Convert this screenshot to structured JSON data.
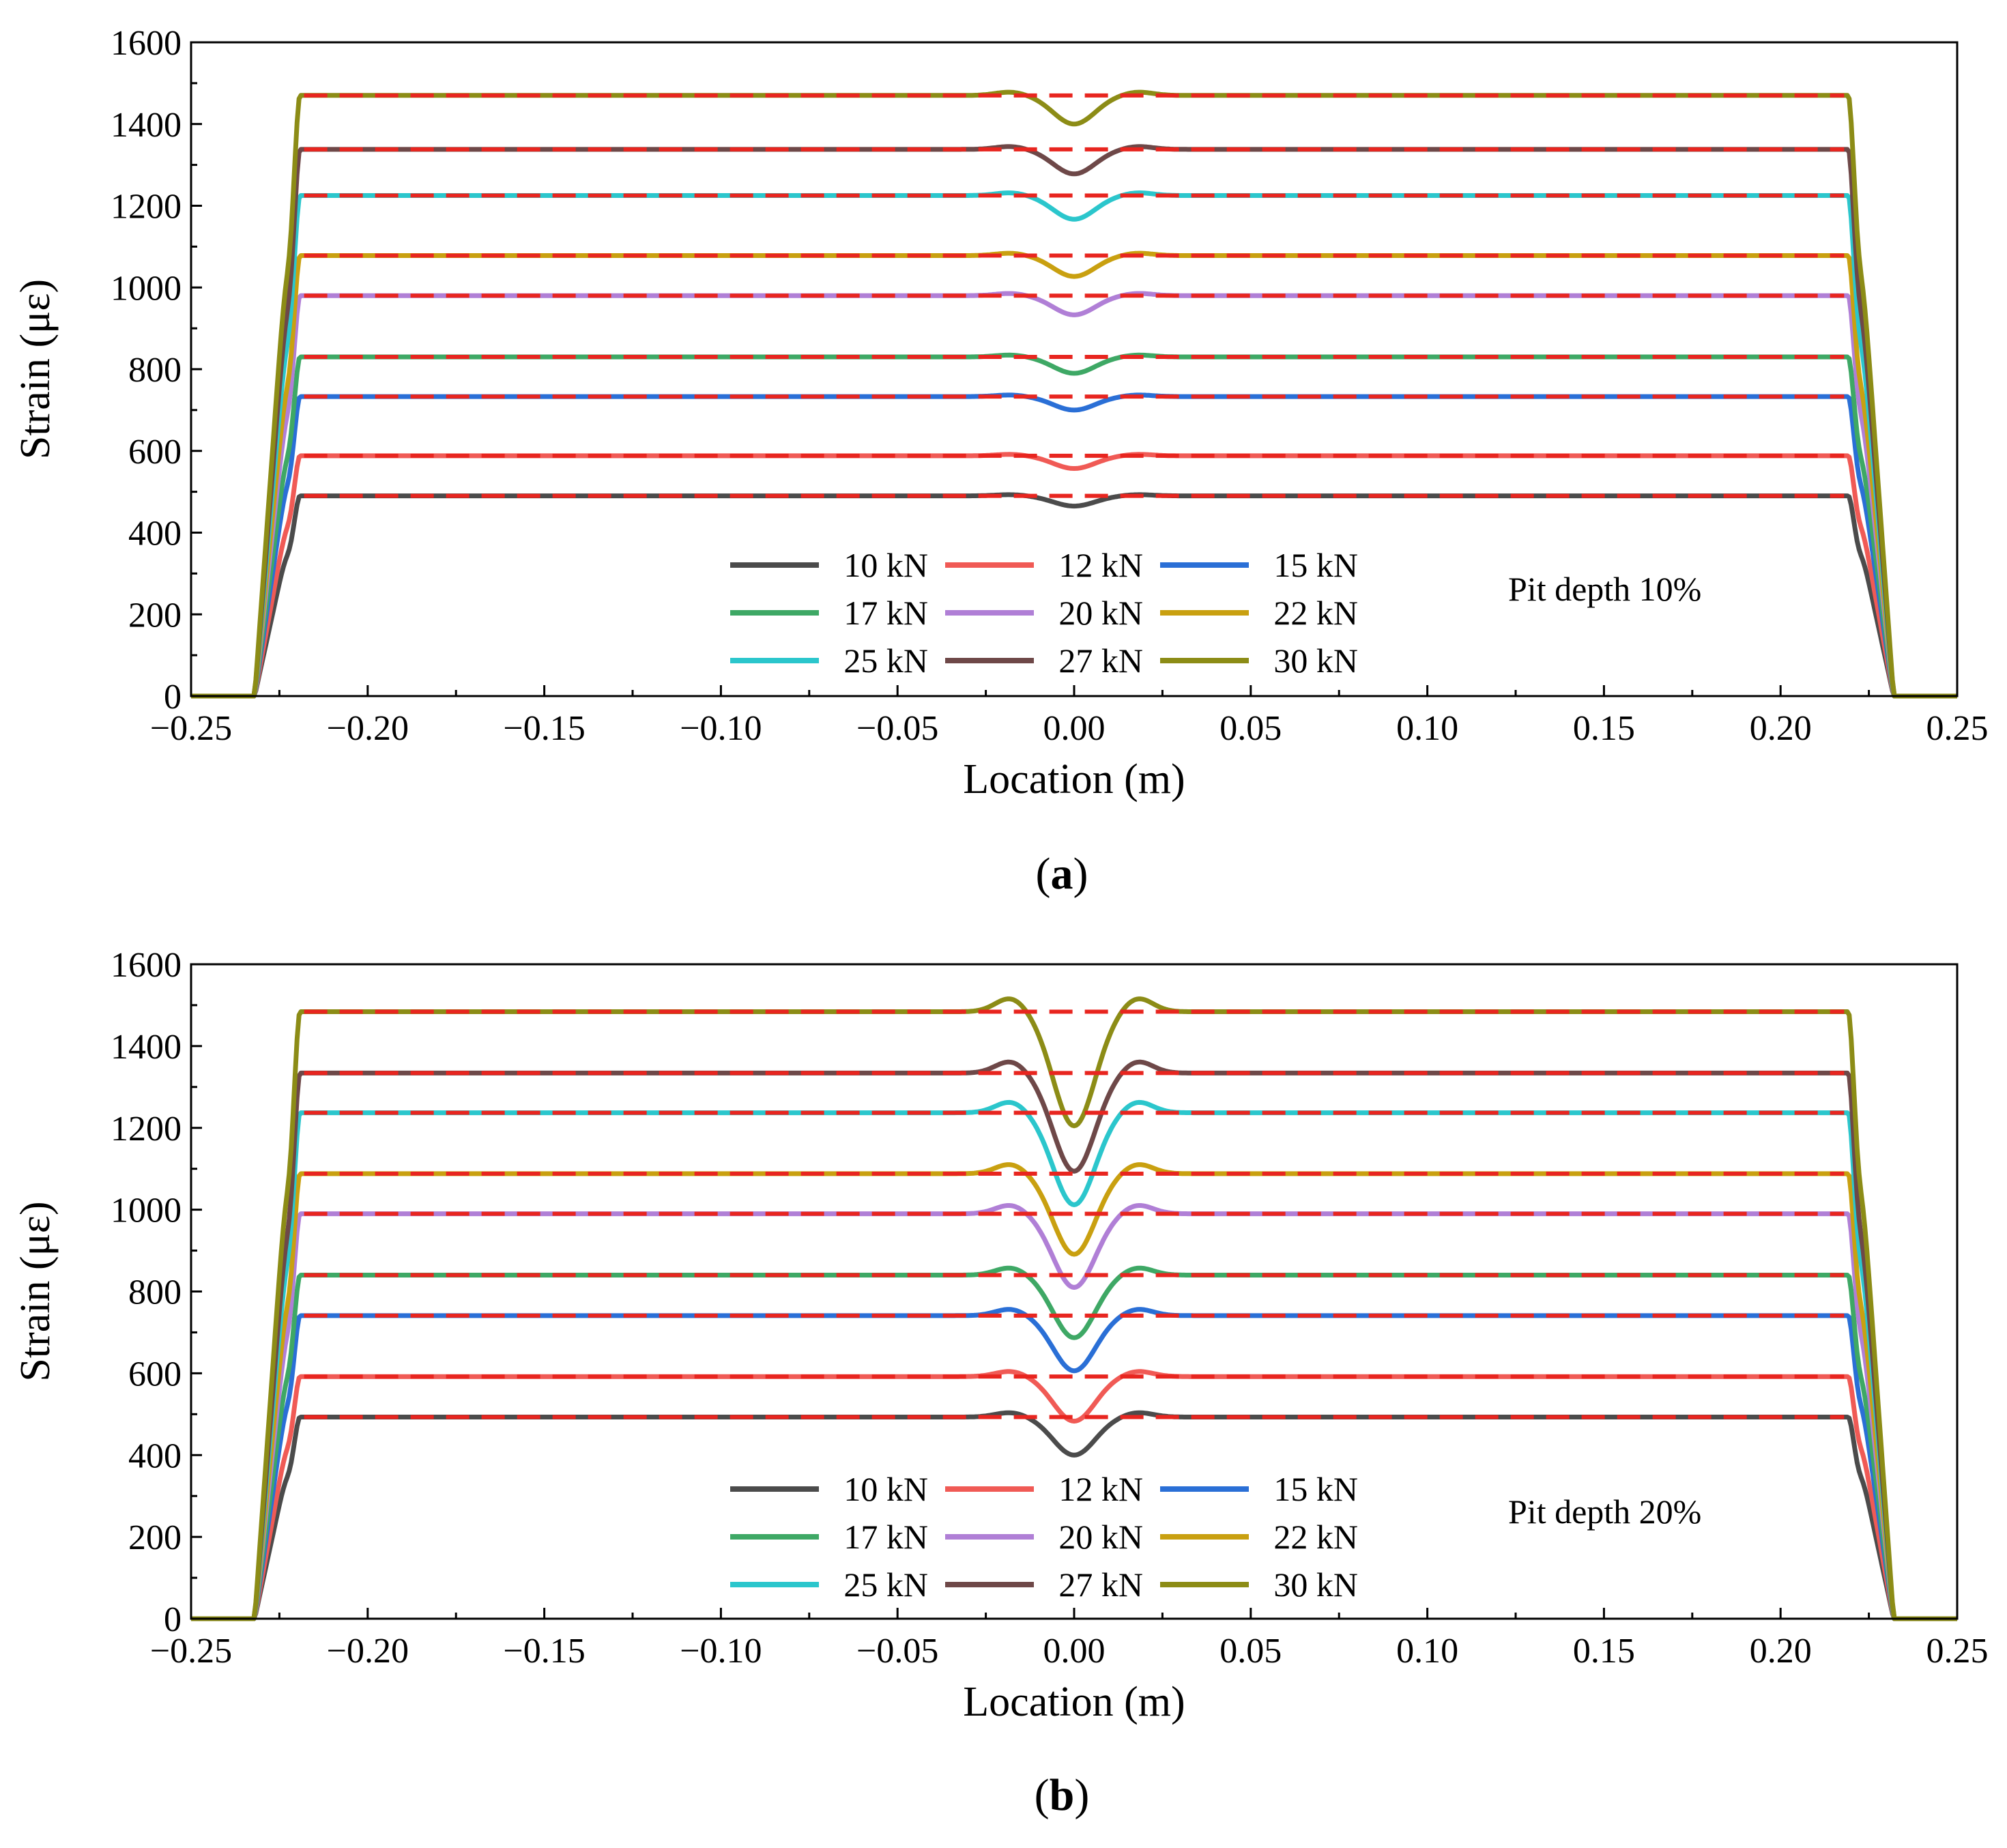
{
  "chart_data": [
    {
      "type": "line",
      "panel_label": "a",
      "annotation": "Pit depth 10%",
      "xlabel": "Location (m)",
      "ylabel": "Strain (με)",
      "xlim": [
        -0.25,
        0.25
      ],
      "ylim": [
        0,
        1600
      ],
      "xticks": [
        "−0.25",
        "−0.20",
        "−0.15",
        "−0.10",
        "−0.05",
        "0.00",
        "0.05",
        "0.10",
        "0.15",
        "0.20",
        "0.25"
      ],
      "yticks": [
        "0",
        "200",
        "400",
        "600",
        "800",
        "1000",
        "1200",
        "1400",
        "1600"
      ],
      "ref_line_color": "#e8251f",
      "profile": {
        "support_x": 0.232,
        "plateau_start": 0.219,
        "dip_halfwidth": 0.015
      },
      "series": [
        {
          "name": "10 kN",
          "color": "#4b4b4b",
          "plateau": 490,
          "dip_min": 465
        },
        {
          "name": "12 kN",
          "color": "#f05a55",
          "plateau": 588,
          "dip_min": 557
        },
        {
          "name": "15 kN",
          "color": "#2a6fd6",
          "plateau": 733,
          "dip_min": 700
        },
        {
          "name": "17 kN",
          "color": "#3ea865",
          "plateau": 830,
          "dip_min": 790
        },
        {
          "name": "20 kN",
          "color": "#b07fd6",
          "plateau": 980,
          "dip_min": 933
        },
        {
          "name": "22 kN",
          "color": "#c9a010",
          "plateau": 1078,
          "dip_min": 1027
        },
        {
          "name": "25 kN",
          "color": "#2bc6cc",
          "plateau": 1225,
          "dip_min": 1167
        },
        {
          "name": "27 kN",
          "color": "#6e4848",
          "plateau": 1338,
          "dip_min": 1278
        },
        {
          "name": "30 kN",
          "color": "#8c8c16",
          "plateau": 1470,
          "dip_min": 1400
        }
      ]
    },
    {
      "type": "line",
      "panel_label": "b",
      "annotation": "Pit depth 20%",
      "xlabel": "Location (m)",
      "ylabel": "Strain (με)",
      "xlim": [
        -0.25,
        0.25
      ],
      "ylim": [
        0,
        1600
      ],
      "xticks": [
        "−0.25",
        "−0.20",
        "−0.15",
        "−0.10",
        "−0.05",
        "0.00",
        "0.05",
        "0.10",
        "0.15",
        "0.20",
        "0.25"
      ],
      "yticks": [
        "0",
        "200",
        "400",
        "600",
        "800",
        "1000",
        "1200",
        "1400",
        "1600"
      ],
      "ref_line_color": "#e8251f",
      "profile": {
        "support_x": 0.232,
        "plateau_start": 0.219,
        "dip_halfwidth": 0.015
      },
      "series": [
        {
          "name": "10 kN",
          "color": "#4b4b4b",
          "plateau": 493,
          "dip_min": 400
        },
        {
          "name": "12 kN",
          "color": "#f05a55",
          "plateau": 592,
          "dip_min": 483
        },
        {
          "name": "15 kN",
          "color": "#2a6fd6",
          "plateau": 741,
          "dip_min": 606
        },
        {
          "name": "17 kN",
          "color": "#3ea865",
          "plateau": 840,
          "dip_min": 687
        },
        {
          "name": "20 kN",
          "color": "#b07fd6",
          "plateau": 990,
          "dip_min": 810
        },
        {
          "name": "22 kN",
          "color": "#c9a010",
          "plateau": 1088,
          "dip_min": 891
        },
        {
          "name": "25 kN",
          "color": "#2bc6cc",
          "plateau": 1237,
          "dip_min": 1012
        },
        {
          "name": "27 kN",
          "color": "#6e4848",
          "plateau": 1334,
          "dip_min": 1094
        },
        {
          "name": "30 kN",
          "color": "#8c8c16",
          "plateau": 1484,
          "dip_min": 1205
        }
      ]
    }
  ]
}
